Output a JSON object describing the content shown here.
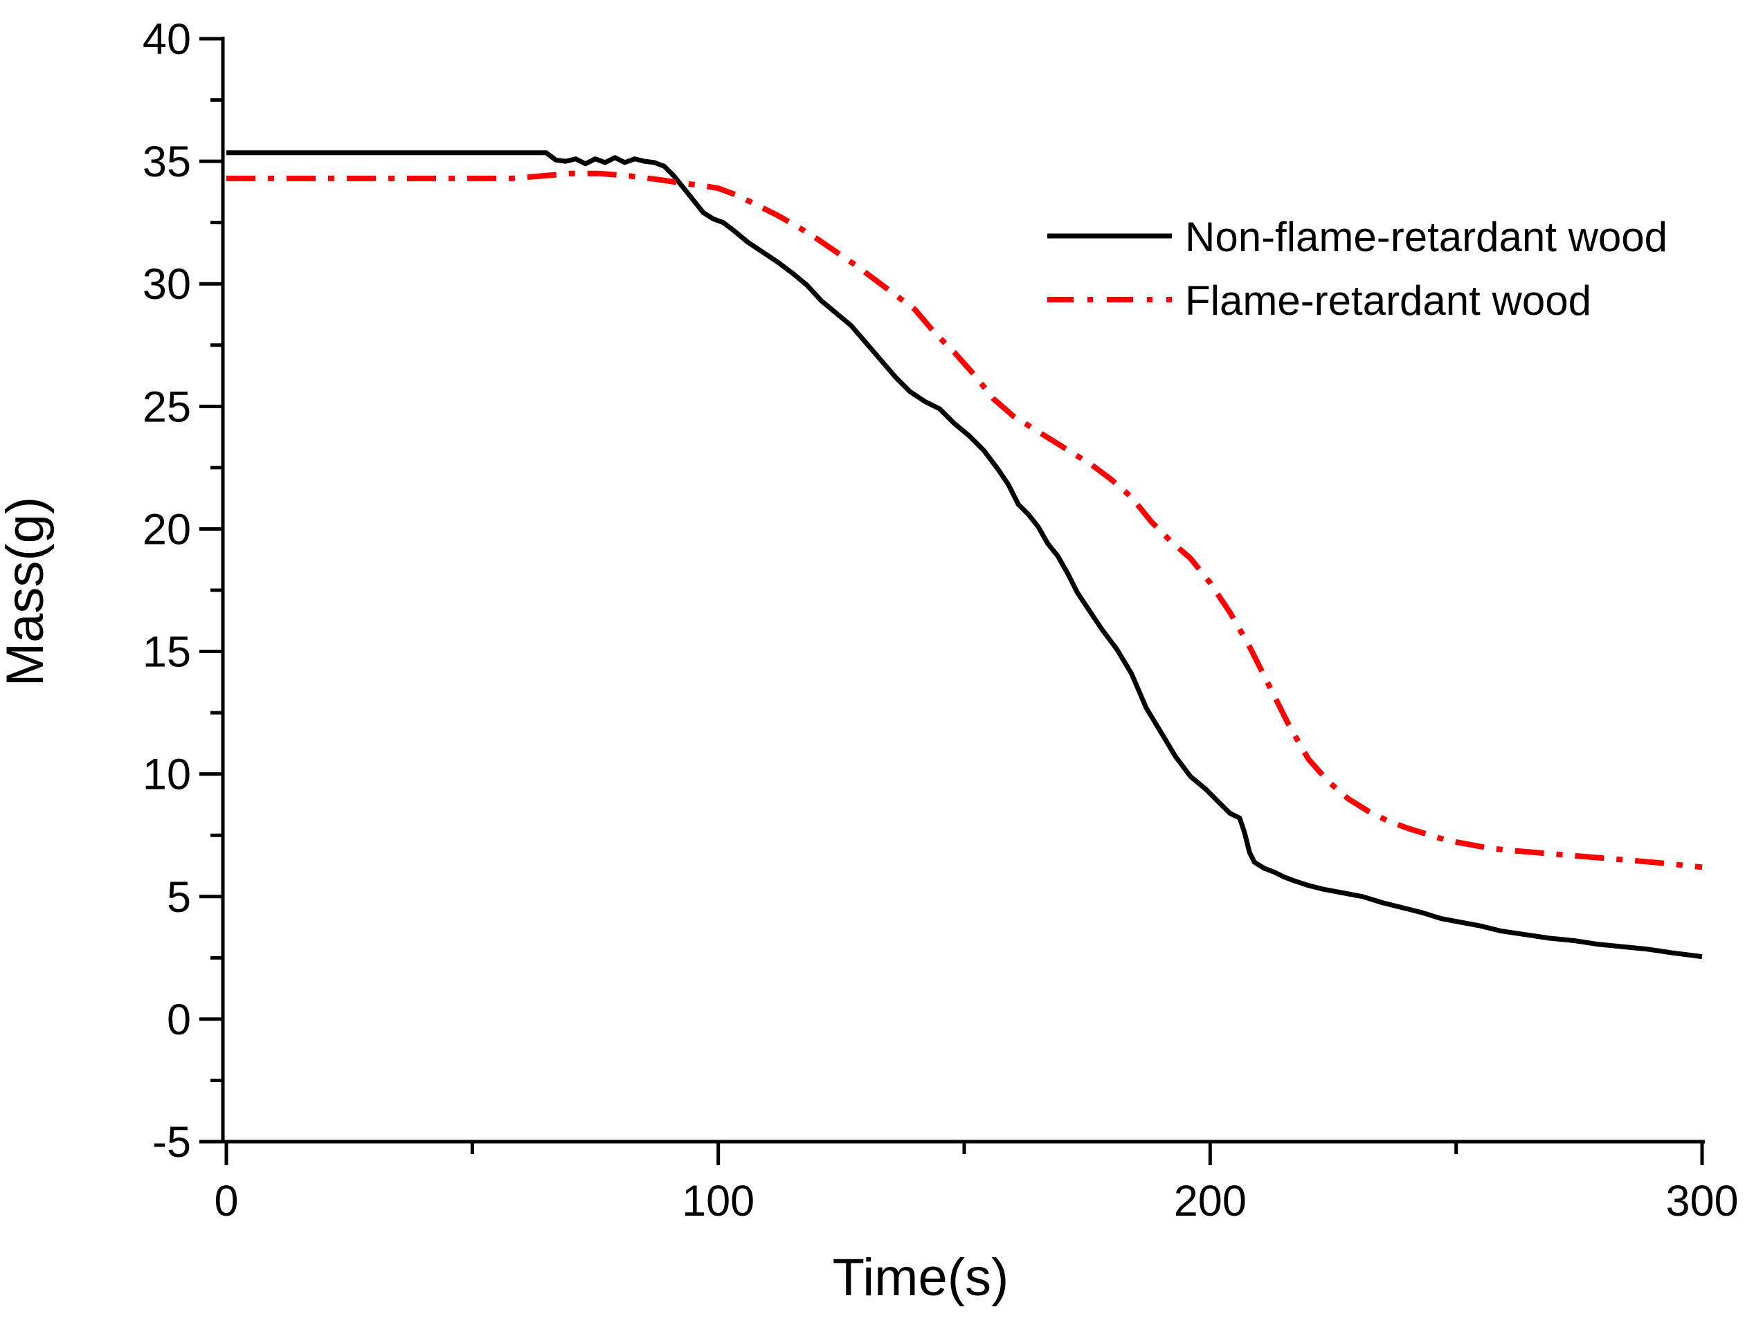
{
  "figure": {
    "background_color": "#ffffff",
    "axis_color": "#000000"
  },
  "chart_data": {
    "type": "line",
    "title": "",
    "xlabel": "Time(s)",
    "ylabel": "Mass(g)",
    "xlim": [
      0,
      300
    ],
    "ylim": [
      -5,
      40
    ],
    "x_major_ticks": [
      0,
      100,
      200,
      300
    ],
    "x_minor_ticks": [
      50,
      150,
      250
    ],
    "y_major_ticks": [
      40,
      35,
      30,
      25,
      20,
      15,
      10,
      5,
      0,
      -5
    ],
    "y_minor_step": 2.5,
    "grid": false,
    "legend_position": "upper-right",
    "series": [
      {
        "name": "Non-flame-retardant wood",
        "color": "#000000",
        "style": "solid",
        "line_width": 7,
        "points": [
          [
            0,
            35.35
          ],
          [
            10,
            35.35
          ],
          [
            20,
            35.35
          ],
          [
            30,
            35.35
          ],
          [
            40,
            35.35
          ],
          [
            50,
            35.35
          ],
          [
            60,
            35.35
          ],
          [
            65,
            35.35
          ],
          [
            67,
            35.05
          ],
          [
            69,
            35.0
          ],
          [
            71,
            35.1
          ],
          [
            73,
            34.9
          ],
          [
            75,
            35.1
          ],
          [
            77,
            34.95
          ],
          [
            79,
            35.15
          ],
          [
            81,
            34.95
          ],
          [
            83,
            35.1
          ],
          [
            85,
            35.0
          ],
          [
            87,
            34.95
          ],
          [
            89,
            34.8
          ],
          [
            91,
            34.4
          ],
          [
            93,
            33.9
          ],
          [
            95,
            33.4
          ],
          [
            97,
            32.9
          ],
          [
            99,
            32.65
          ],
          [
            101,
            32.5
          ],
          [
            103,
            32.2
          ],
          [
            106,
            31.7
          ],
          [
            109,
            31.3
          ],
          [
            112,
            30.9
          ],
          [
            115,
            30.45
          ],
          [
            118,
            29.95
          ],
          [
            121,
            29.3
          ],
          [
            124,
            28.8
          ],
          [
            127,
            28.3
          ],
          [
            130,
            27.6
          ],
          [
            133,
            26.9
          ],
          [
            136,
            26.2
          ],
          [
            139,
            25.6
          ],
          [
            142,
            25.2
          ],
          [
            145,
            24.9
          ],
          [
            148,
            24.3
          ],
          [
            151,
            23.8
          ],
          [
            154,
            23.2
          ],
          [
            157,
            22.4
          ],
          [
            159,
            21.8
          ],
          [
            161,
            21.0
          ],
          [
            163,
            20.6
          ],
          [
            165,
            20.1
          ],
          [
            167,
            19.4
          ],
          [
            169,
            18.9
          ],
          [
            171,
            18.2
          ],
          [
            173,
            17.4
          ],
          [
            175,
            16.8
          ],
          [
            178,
            15.9
          ],
          [
            181,
            15.1
          ],
          [
            184,
            14.1
          ],
          [
            187,
            12.7
          ],
          [
            190,
            11.7
          ],
          [
            193,
            10.7
          ],
          [
            196,
            9.9
          ],
          [
            199,
            9.4
          ],
          [
            202,
            8.8
          ],
          [
            204,
            8.4
          ],
          [
            206,
            8.2
          ],
          [
            207,
            7.6
          ],
          [
            208,
            6.8
          ],
          [
            209,
            6.4
          ],
          [
            211,
            6.15
          ],
          [
            213,
            6.0
          ],
          [
            215,
            5.8
          ],
          [
            217,
            5.65
          ],
          [
            220,
            5.45
          ],
          [
            223,
            5.3
          ],
          [
            227,
            5.15
          ],
          [
            231,
            5.0
          ],
          [
            235,
            4.75
          ],
          [
            239,
            4.55
          ],
          [
            243,
            4.35
          ],
          [
            247,
            4.1
          ],
          [
            251,
            3.95
          ],
          [
            255,
            3.8
          ],
          [
            259,
            3.6
          ],
          [
            264,
            3.45
          ],
          [
            269,
            3.3
          ],
          [
            274,
            3.2
          ],
          [
            279,
            3.05
          ],
          [
            284,
            2.95
          ],
          [
            289,
            2.85
          ],
          [
            294,
            2.7
          ],
          [
            300,
            2.55
          ]
        ]
      },
      {
        "name": "Flame-retardant wood",
        "color": "#ff0000",
        "style": "dash-dot",
        "line_width": 8,
        "points": [
          [
            0,
            34.3
          ],
          [
            10,
            34.3
          ],
          [
            20,
            34.3
          ],
          [
            30,
            34.3
          ],
          [
            40,
            34.3
          ],
          [
            50,
            34.3
          ],
          [
            58,
            34.3
          ],
          [
            64,
            34.4
          ],
          [
            70,
            34.5
          ],
          [
            76,
            34.5
          ],
          [
            82,
            34.4
          ],
          [
            88,
            34.25
          ],
          [
            93,
            34.1
          ],
          [
            97,
            34.0
          ],
          [
            100,
            33.9
          ],
          [
            104,
            33.6
          ],
          [
            108,
            33.2
          ],
          [
            112,
            32.8
          ],
          [
            116,
            32.35
          ],
          [
            120,
            31.85
          ],
          [
            124,
            31.3
          ],
          [
            128,
            30.75
          ],
          [
            132,
            30.15
          ],
          [
            136,
            29.55
          ],
          [
            140,
            28.95
          ],
          [
            144,
            28.0
          ],
          [
            148,
            27.2
          ],
          [
            152,
            26.3
          ],
          [
            156,
            25.3
          ],
          [
            160,
            24.6
          ],
          [
            164,
            24.1
          ],
          [
            168,
            23.6
          ],
          [
            172,
            23.1
          ],
          [
            176,
            22.6
          ],
          [
            180,
            22.0
          ],
          [
            184,
            21.3
          ],
          [
            188,
            20.3
          ],
          [
            192,
            19.5
          ],
          [
            196,
            18.8
          ],
          [
            200,
            17.8
          ],
          [
            204,
            16.6
          ],
          [
            208,
            15.2
          ],
          [
            212,
            13.6
          ],
          [
            216,
            12.0
          ],
          [
            220,
            10.6
          ],
          [
            224,
            9.7
          ],
          [
            228,
            9.0
          ],
          [
            232,
            8.5
          ],
          [
            236,
            8.1
          ],
          [
            240,
            7.8
          ],
          [
            244,
            7.55
          ],
          [
            248,
            7.3
          ],
          [
            252,
            7.15
          ],
          [
            256,
            7.0
          ],
          [
            260,
            6.9
          ],
          [
            266,
            6.8
          ],
          [
            272,
            6.7
          ],
          [
            278,
            6.6
          ],
          [
            284,
            6.5
          ],
          [
            290,
            6.4
          ],
          [
            295,
            6.3
          ],
          [
            300,
            6.2
          ]
        ]
      }
    ]
  }
}
